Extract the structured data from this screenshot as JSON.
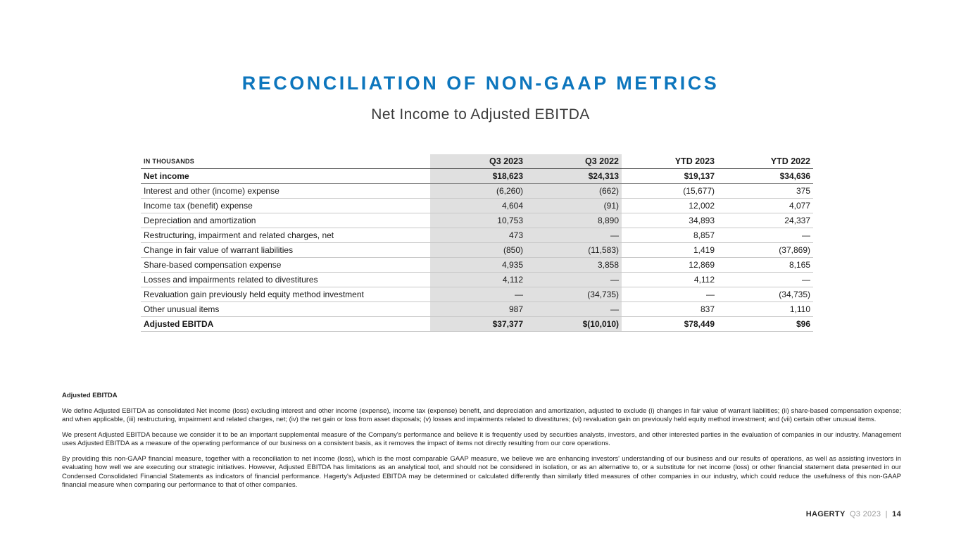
{
  "colors": {
    "accent_blue": "#0d76bd",
    "shaded_column": "#e0e0e0"
  },
  "page": {
    "title": "RECONCILIATION OF NON-GAAP METRICS",
    "subtitle": "Net Income to Adjusted EBITDA"
  },
  "table": {
    "header": [
      "IN THOUSANDS",
      "Q3 2023",
      "Q3 2022",
      "YTD 2023",
      "YTD 2022"
    ],
    "rows": [
      {
        "label": "Net income",
        "values": [
          "$18,623",
          "$24,313",
          "$19,137",
          "$34,636"
        ]
      },
      {
        "label": "Interest and other (income) expense",
        "values": [
          "(6,260)",
          "(662)",
          "(15,677)",
          "375"
        ]
      },
      {
        "label": "Income tax (benefit) expense",
        "values": [
          "4,604",
          "(91)",
          "12,002",
          "4,077"
        ]
      },
      {
        "label": "Depreciation and amortization",
        "values": [
          "10,753",
          "8,890",
          "34,893",
          "24,337"
        ]
      },
      {
        "label": "Restructuring, impairment and related charges, net",
        "values": [
          "473",
          "—",
          "8,857",
          "—"
        ]
      },
      {
        "label": "Change in fair value of warrant liabilities",
        "values": [
          "(850)",
          "(11,583)",
          "1,419",
          "(37,869)"
        ]
      },
      {
        "label": "Share-based compensation expense",
        "values": [
          "4,935",
          "3,858",
          "12,869",
          "8,165"
        ]
      },
      {
        "label": "Losses and impairments related to divestitures",
        "values": [
          "4,112",
          "—",
          "4,112",
          "—"
        ]
      },
      {
        "label": "Revaluation gain previously held equity method investment",
        "values": [
          "—",
          "(34,735)",
          "—",
          "(34,735)"
        ]
      },
      {
        "label": "Other unusual items",
        "values": [
          "987",
          "—",
          "837",
          "1,110"
        ]
      },
      {
        "label": "Adjusted EBITDA",
        "values": [
          "$37,377",
          "$(10,010)",
          "$78,449",
          "$96"
        ]
      }
    ]
  },
  "footnotes": {
    "heading": "Adjusted EBITDA",
    "p1": "We define Adjusted EBITDA as consolidated Net income (loss) excluding interest and other income (expense), income tax (expense) benefit, and depreciation and amortization, adjusted to exclude (i) changes in fair value of warrant liabilities; (ii) share-based compensation expense; and when applicable, (iii) restructuring, impairment and related charges, net; (iv) the net gain or loss from asset disposals; (v) losses and impairments related to divestitures; (vi) revaluation gain on previously held equity method investment; and (vii) certain other unusual items.",
    "p2": "We present Adjusted EBITDA because we consider it to be an important supplemental measure of the Company's performance and believe it is frequently used by securities analysts, investors, and other interested parties in the evaluation of companies in our industry. Management uses Adjusted EBITDA as a measure of the operating performance of our business on a consistent basis, as it removes the impact of items not directly resulting from our core operations.",
    "p3": "By providing this non-GAAP financial measure, together with a reconciliation to net income (loss), which is the most comparable GAAP measure, we believe we are enhancing investors' understanding of our business and our results of operations, as well as assisting investors in evaluating how well we are executing our strategic initiatives. However, Adjusted EBITDA has limitations as an analytical tool, and should not be considered in isolation, or as an alternative to, or a substitute for net income (loss) or other financial statement data presented in our Condensed Consolidated Financial Statements as indicators of financial performance. Hagerty's Adjusted EBITDA may be determined or calculated differently than similarly titled measures of other companies in our industry, which could reduce the usefulness of this non-GAAP financial measure when comparing our performance to that of other companies."
  },
  "footer": {
    "brand": "HAGERTY",
    "period": "Q3 2023",
    "separator": "|",
    "page_number": "14"
  }
}
